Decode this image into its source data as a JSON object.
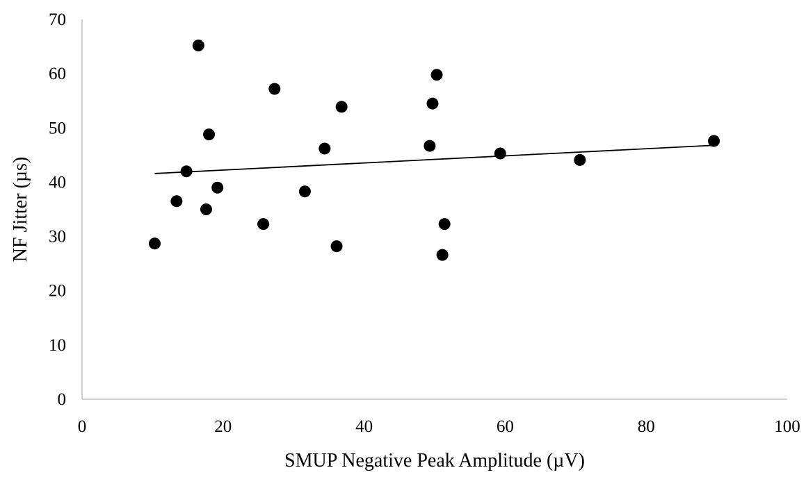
{
  "chart_data": {
    "type": "scatter",
    "title": "",
    "xlabel": "SMUP Negative Peak Amplitude (µV)",
    "ylabel": "NF Jitter (µs)",
    "xlim": [
      0,
      100
    ],
    "ylim": [
      0,
      70
    ],
    "x_ticks": [
      0,
      20,
      40,
      60,
      80,
      100
    ],
    "y_ticks": [
      0,
      10,
      20,
      30,
      40,
      50,
      60,
      70
    ],
    "x_tick_labels": [
      "0",
      "20",
      "40",
      "60",
      "80",
      "100"
    ],
    "y_tick_labels": [
      "0",
      "10",
      "20",
      "30",
      "40",
      "50",
      "60",
      "70"
    ],
    "grid": false,
    "legend": "none",
    "marker_color": "#000000",
    "points": [
      {
        "x": 10.3,
        "y": 28.7
      },
      {
        "x": 13.4,
        "y": 36.5
      },
      {
        "x": 14.8,
        "y": 42.0
      },
      {
        "x": 16.5,
        "y": 65.2
      },
      {
        "x": 17.6,
        "y": 35.0
      },
      {
        "x": 18.0,
        "y": 48.8
      },
      {
        "x": 19.2,
        "y": 39.0
      },
      {
        "x": 25.7,
        "y": 32.3
      },
      {
        "x": 27.3,
        "y": 57.2
      },
      {
        "x": 31.6,
        "y": 38.3
      },
      {
        "x": 34.4,
        "y": 46.2
      },
      {
        "x": 36.1,
        "y": 28.2
      },
      {
        "x": 36.8,
        "y": 53.9
      },
      {
        "x": 49.3,
        "y": 46.7
      },
      {
        "x": 49.7,
        "y": 54.5
      },
      {
        "x": 50.3,
        "y": 59.8
      },
      {
        "x": 51.1,
        "y": 26.6
      },
      {
        "x": 51.4,
        "y": 32.3
      },
      {
        "x": 59.3,
        "y": 45.3
      },
      {
        "x": 70.6,
        "y": 44.1
      },
      {
        "x": 89.6,
        "y": 47.6
      }
    ],
    "trendline": {
      "type": "linear",
      "x": [
        10.3,
        89.6
      ],
      "y": [
        41.6,
        46.8
      ]
    }
  }
}
